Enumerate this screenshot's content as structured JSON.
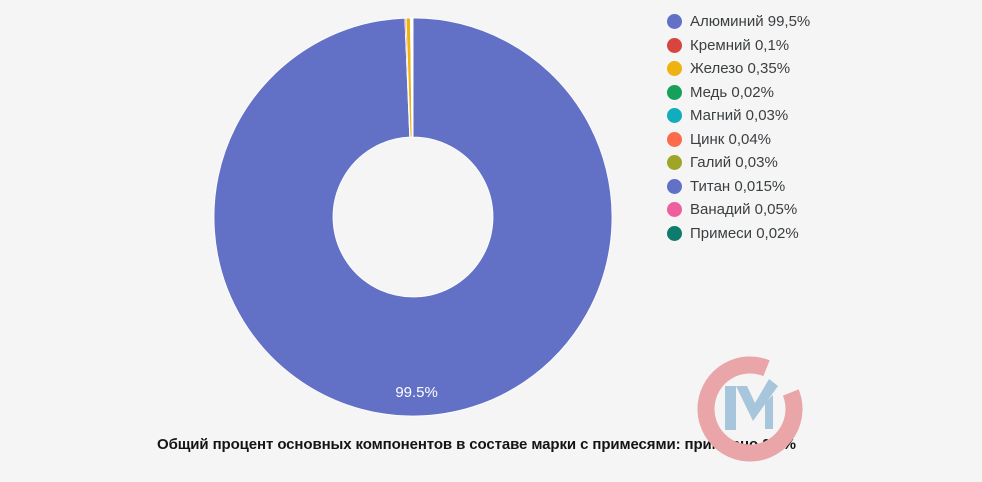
{
  "background_color": "#f5f5f5",
  "chart_data": {
    "type": "pie",
    "subtype": "donut",
    "direction": "clockwise",
    "start_angle_deg": 0,
    "inner_radius_ratio": 0.4,
    "legend_position": "right",
    "slices": [
      {
        "label": "Алюминий",
        "value": 99.5,
        "value_label": "99,5%",
        "color": "#6271c5"
      },
      {
        "label": "Кремний",
        "value": 0.1,
        "value_label": "0,1%",
        "color": "#d8453e"
      },
      {
        "label": "Железо",
        "value": 0.35,
        "value_label": "0,35%",
        "color": "#eeb211"
      },
      {
        "label": "Медь",
        "value": 0.02,
        "value_label": "0,02%",
        "color": "#17a05c"
      },
      {
        "label": "Магний",
        "value": 0.03,
        "value_label": "0,03%",
        "color": "#10aebc"
      },
      {
        "label": "Цинк",
        "value": 0.04,
        "value_label": "0,04%",
        "color": "#fc6c4c"
      },
      {
        "label": "Галий",
        "value": 0.03,
        "value_label": "0,03%",
        "color": "#9fa627"
      },
      {
        "label": "Титан",
        "value": 0.015,
        "value_label": "0,015%",
        "color": "#6271c5"
      },
      {
        "label": "Ванадий",
        "value": 0.05,
        "value_label": "0,05%",
        "color": "#ef5f9e"
      },
      {
        "label": "Примеси",
        "value": 0.02,
        "value_label": "0,02%",
        "color": "#0e7c6c"
      }
    ],
    "data_labels": [
      {
        "slice": "Алюминий",
        "text": "99.5%",
        "color": "#ffffff"
      }
    ]
  },
  "caption": "Общий процент основных компонентов в составе марки с примесями: примерно 0,5%",
  "watermark": {
    "name": "CM logo",
    "c_color": "#e9a5a8",
    "m_color": "#a7c6db"
  }
}
